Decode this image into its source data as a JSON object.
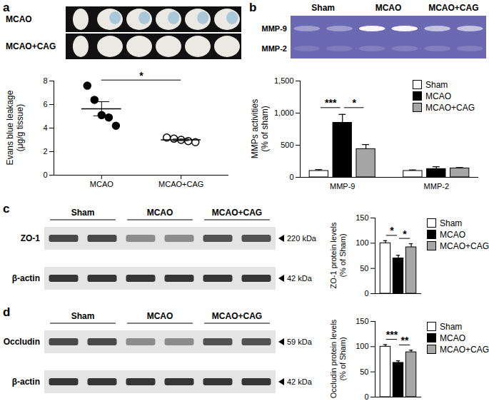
{
  "chart_data": [
    {
      "panel": "a",
      "type": "scatter",
      "image": {
        "rows": [
          "MCAO",
          "MCAO+CAG"
        ]
      },
      "ylabel": "Evans blue leakage (μg/g tissue)",
      "series": [
        {
          "name": "MCAO",
          "color": "#000000",
          "marker": "filled circle",
          "values": [
            7.6,
            6.4,
            5.1,
            4.9,
            4.2
          ],
          "mean": 5.64,
          "sem": 0.6
        },
        {
          "name": "MCAO+CAG",
          "color": "#000000",
          "marker": "open circle",
          "values": [
            3.2,
            3.1,
            3.0,
            2.9,
            2.8
          ],
          "mean": 3.0,
          "sem": 0.07
        }
      ],
      "ylim": [
        0,
        8
      ],
      "yticks": [
        0,
        2,
        4,
        6,
        8
      ],
      "annotations": [
        {
          "text": "*",
          "from": "MCAO",
          "to": "MCAO+CAG"
        }
      ]
    },
    {
      "panel": "b",
      "type": "bar",
      "image": {
        "lanes": [
          "Sham",
          "MCAO",
          "MCAO+CAG"
        ],
        "bands": [
          "MMP-9",
          "MMP-2"
        ]
      },
      "ylabel": "MMPs activities (% of sham)",
      "categories": [
        "MMP-9",
        "MMP-2"
      ],
      "series": [
        {
          "name": "Sham",
          "color": "#ffffff",
          "values": [
            100,
            100
          ],
          "errors": [
            20,
            15
          ]
        },
        {
          "name": "MCAO",
          "color": "#000000",
          "values": [
            850,
            130
          ],
          "errors": [
            130,
            35
          ]
        },
        {
          "name": "MCAO+CAG",
          "color": "#a6a6a6",
          "values": [
            440,
            140
          ],
          "errors": [
            70,
            12
          ]
        }
      ],
      "ylim": [
        0,
        1500
      ],
      "yticks": [
        0,
        500,
        1000,
        1500
      ],
      "legend": "top-right",
      "annotations": [
        {
          "text": "***",
          "category": "MMP-9",
          "from": "Sham",
          "to": "MCAO"
        },
        {
          "text": "*",
          "category": "MMP-9",
          "from": "MCAO",
          "to": "MCAO+CAG"
        }
      ]
    },
    {
      "panel": "c",
      "type": "bar",
      "image": {
        "lanes": [
          "Sham",
          "MCAO",
          "MCAO+CAG"
        ],
        "blots": [
          {
            "label": "ZO-1",
            "size": "220 kDa"
          },
          {
            "label": "β-actin",
            "size": "42 kDa"
          }
        ]
      },
      "ylabel": "ZO-1 protein levels (% of Sham)",
      "categories": [
        null
      ],
      "tick_labels": "y",
      "series": [
        {
          "name": "Sham",
          "color": "#ffffff",
          "values": [
            100
          ],
          "errors": [
            5
          ]
        },
        {
          "name": "MCAO",
          "color": "#000000",
          "values": [
            70
          ],
          "errors": [
            6
          ]
        },
        {
          "name": "MCAO+CAG",
          "color": "#a6a6a6",
          "values": [
            92
          ],
          "errors": [
            7
          ]
        }
      ],
      "ylim": [
        0,
        150
      ],
      "yticks": [
        0,
        50,
        100,
        150
      ],
      "legend": "right",
      "annotations": [
        {
          "text": "*",
          "from": "Sham",
          "to": "MCAO"
        },
        {
          "text": "*",
          "from": "MCAO",
          "to": "MCAO+CAG"
        }
      ]
    },
    {
      "panel": "d",
      "type": "bar",
      "image": {
        "lanes": [
          "Sham",
          "MCAO",
          "MCAO+CAG"
        ],
        "blots": [
          {
            "label": "Occludin",
            "size": "59 kDa"
          },
          {
            "label": "β-actin",
            "size": "42 kDa"
          }
        ]
      },
      "ylabel": "Occludin protein levels (% of Sham)",
      "categories": [
        null
      ],
      "tick_labels": "y",
      "series": [
        {
          "name": "Sham",
          "color": "#ffffff",
          "values": [
            100
          ],
          "errors": [
            4
          ]
        },
        {
          "name": "MCAO",
          "color": "#000000",
          "values": [
            68
          ],
          "errors": [
            4
          ]
        },
        {
          "name": "MCAO+CAG",
          "color": "#a6a6a6",
          "values": [
            89
          ],
          "errors": [
            4
          ]
        }
      ],
      "ylim": [
        0,
        150
      ],
      "yticks": [
        0,
        50,
        100,
        150
      ],
      "legend": "right",
      "annotations": [
        {
          "text": "***",
          "from": "Sham",
          "to": "MCAO"
        },
        {
          "text": "**",
          "from": "MCAO",
          "to": "MCAO+CAG"
        }
      ]
    }
  ]
}
